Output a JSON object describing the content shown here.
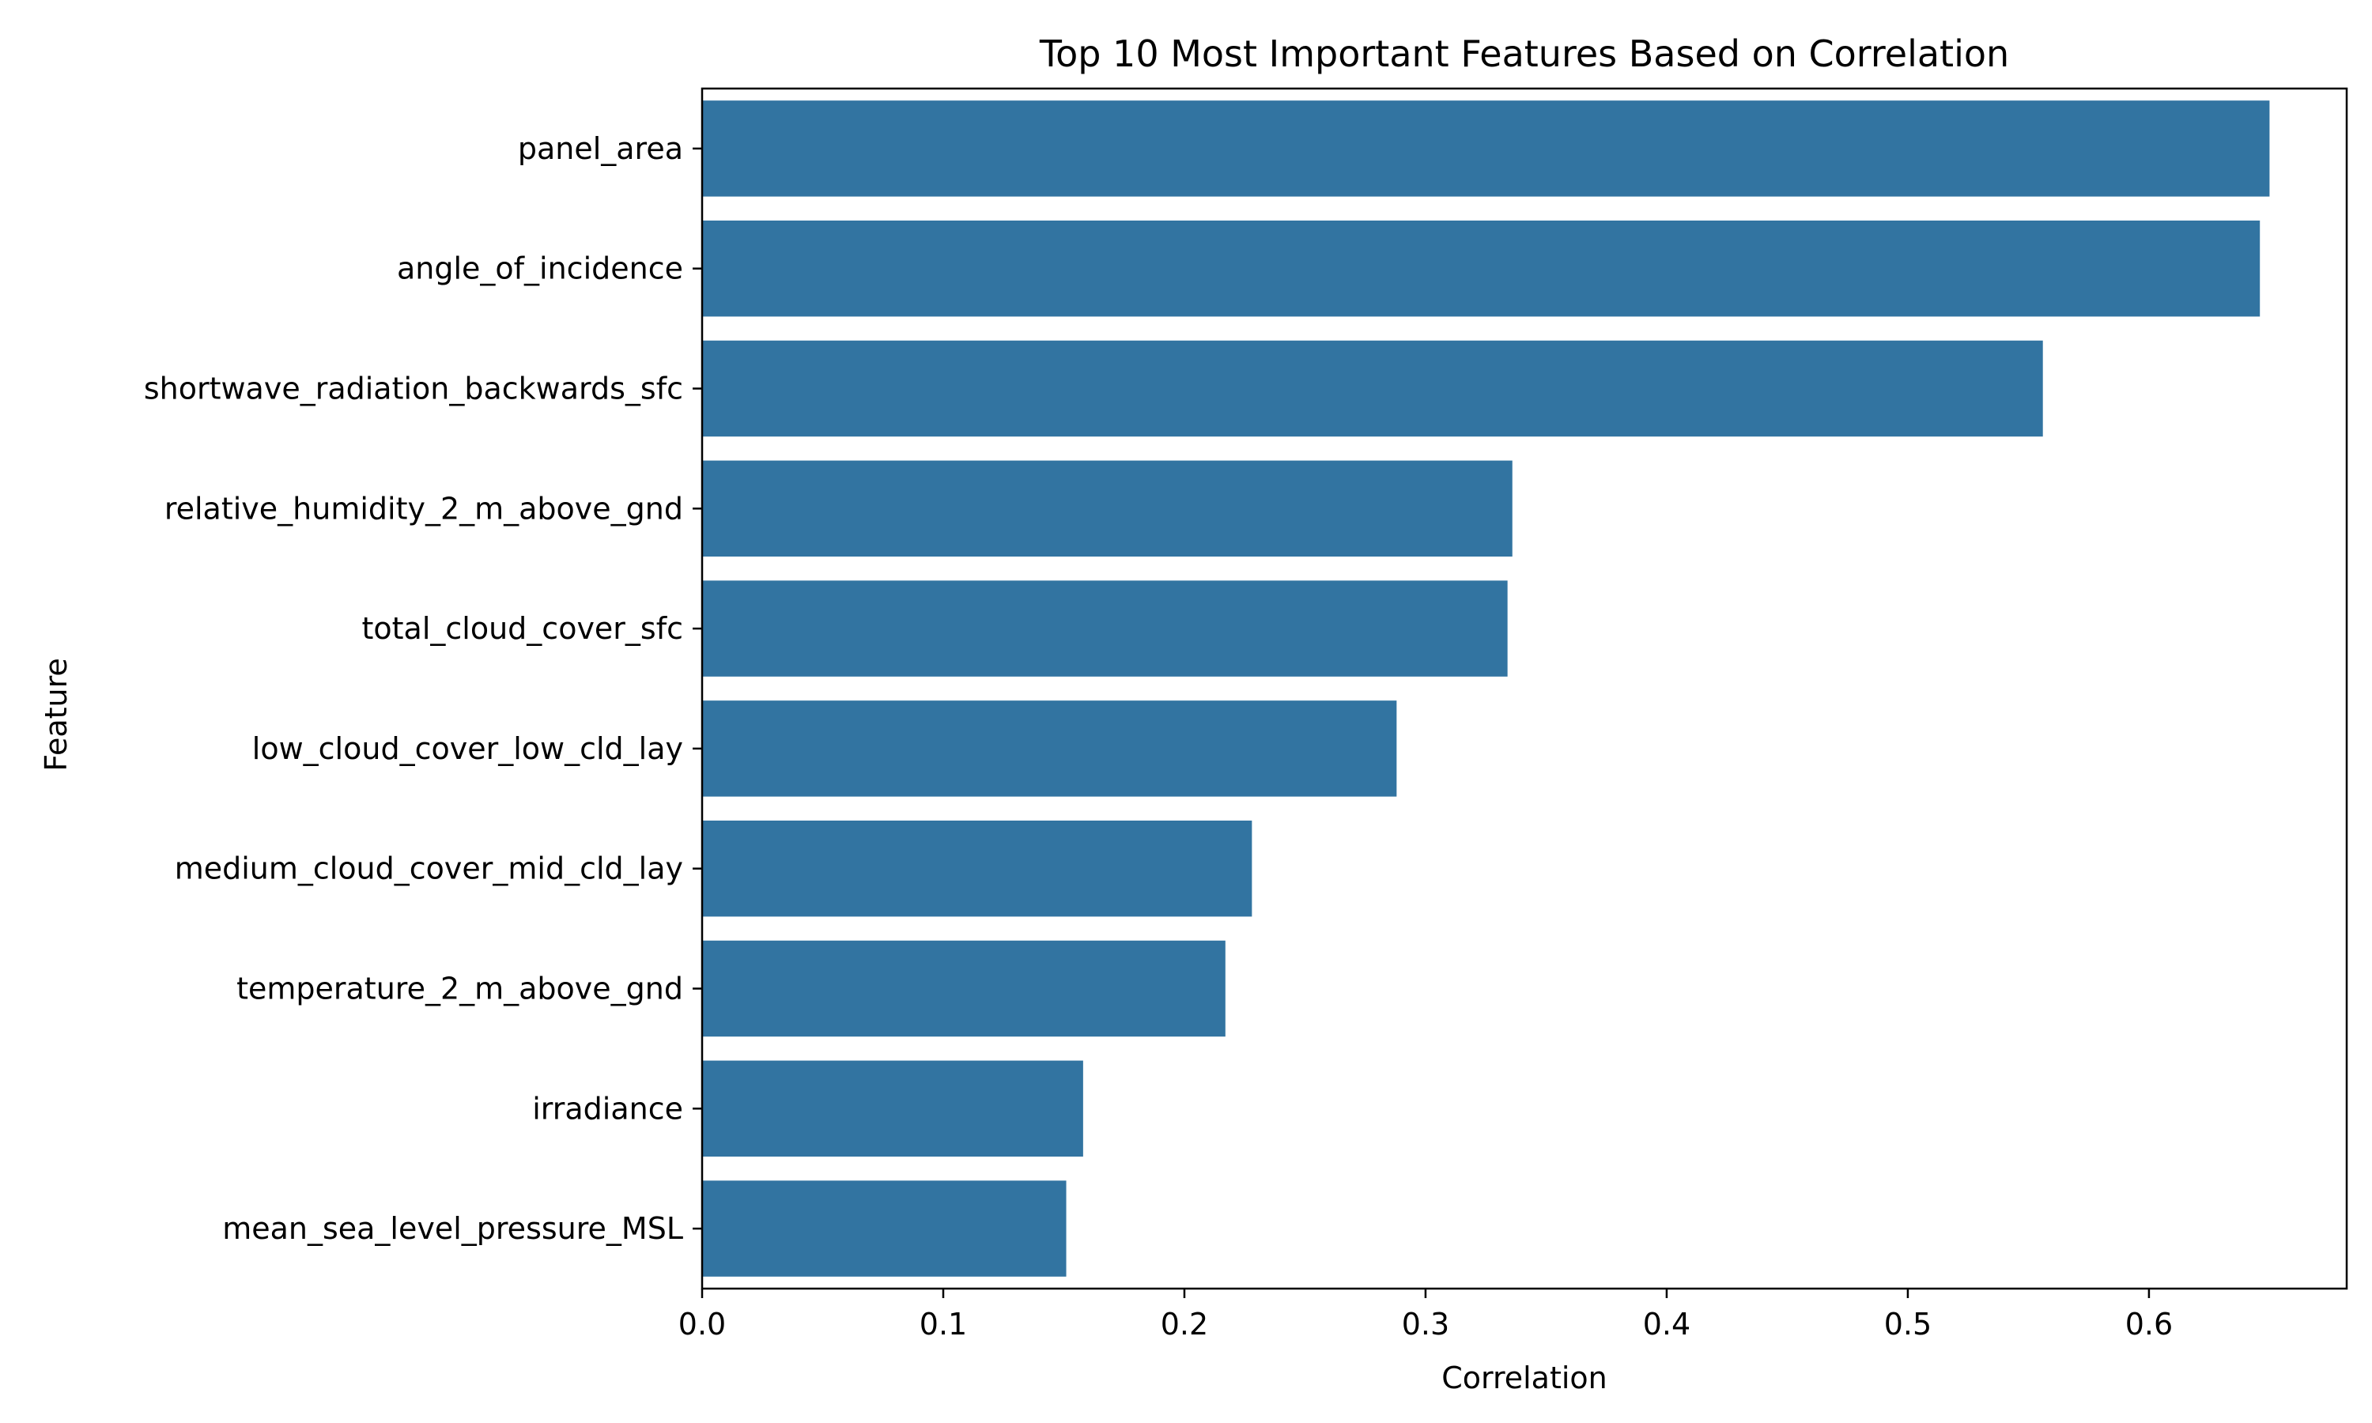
{
  "chart_data": {
    "type": "bar",
    "orientation": "horizontal",
    "title": "Top 10 Most Important Features Based on Correlation",
    "xlabel": "Correlation",
    "ylabel": "Feature",
    "xlim": [
      0,
      0.682
    ],
    "xticks": [
      0.0,
      0.1,
      0.2,
      0.3,
      0.4,
      0.5,
      0.6
    ],
    "xtick_labels": [
      "0.0",
      "0.1",
      "0.2",
      "0.3",
      "0.4",
      "0.5",
      "0.6"
    ],
    "grid": false,
    "bar_color": "#3274a1",
    "categories": [
      "panel_area",
      "angle_of_incidence",
      "shortwave_radiation_backwards_sfc",
      "relative_humidity_2_m_above_gnd",
      "total_cloud_cover_sfc",
      "low_cloud_cover_low_cld_lay",
      "medium_cloud_cover_mid_cld_lay",
      "temperature_2_m_above_gnd",
      "irradiance",
      "mean_sea_level_pressure_MSL"
    ],
    "values": [
      0.65,
      0.646,
      0.556,
      0.336,
      0.334,
      0.288,
      0.228,
      0.217,
      0.158,
      0.151
    ]
  }
}
